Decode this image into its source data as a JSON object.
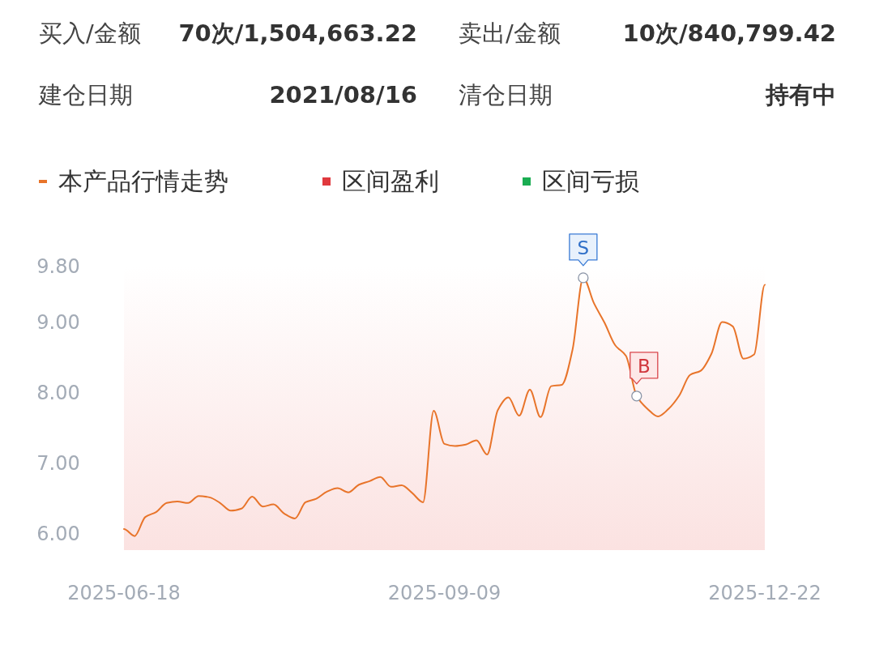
{
  "chart_data": {
    "type": "line",
    "annotations": [
      "买入/金额",
      "70次/1,504,663.22",
      "卖出/金额",
      "10次/840,799.42",
      "建仓日期",
      "2021/08/16",
      "清仓日期",
      "持有中",
      {
        "text": "S",
        "y": 9.64
      },
      {
        "text": "B",
        "y": 7.96
      }
    ],
    "categories": [
      "2025-06-18",
      null,
      null,
      null,
      null,
      null,
      null,
      null,
      null,
      null,
      null,
      null,
      null,
      null,
      null,
      null,
      null,
      null,
      null,
      null,
      null,
      null,
      null,
      null,
      null,
      null,
      null,
      null,
      null,
      null,
      "2025-09-09",
      null,
      null,
      null,
      null,
      null,
      null,
      null,
      null,
      null,
      null,
      null,
      null,
      null,
      null,
      null,
      null,
      null,
      null,
      null,
      null,
      null,
      null,
      null,
      null,
      null,
      null,
      null,
      null,
      null,
      "2025-12-22"
    ],
    "series": [
      {
        "name": "本产品行情走势",
        "color": "#e8742a",
        "values": [
          6.07,
          5.97,
          6.24,
          6.31,
          6.44,
          6.46,
          6.44,
          6.54,
          6.52,
          6.44,
          6.33,
          6.36,
          6.53,
          6.39,
          6.42,
          6.29,
          6.22,
          6.45,
          6.5,
          6.6,
          6.65,
          6.59,
          6.7,
          6.75,
          6.81,
          6.67,
          6.69,
          6.58,
          6.45,
          7.75,
          7.28,
          7.25,
          7.27,
          7.33,
          7.13,
          7.76,
          7.94,
          7.68,
          8.05,
          7.66,
          8.1,
          8.12,
          8.62,
          9.64,
          9.28,
          9.0,
          8.68,
          8.53,
          7.96,
          7.78,
          7.67,
          7.78,
          7.97,
          8.26,
          8.32,
          8.56,
          9.01,
          8.95,
          8.49,
          8.55,
          9.54
        ]
      },
      {
        "name": "区间盈利",
        "color": "#e0393e",
        "type": "area",
        "values": [
          null,
          null,
          null,
          null,
          null,
          null,
          null,
          null,
          null,
          null,
          null,
          null,
          null,
          null,
          null,
          null,
          null,
          null,
          null,
          null,
          null,
          null,
          null,
          null,
          null,
          null,
          null,
          null,
          null,
          null,
          null,
          null,
          null,
          null,
          null,
          null,
          null,
          null,
          null,
          null,
          null,
          null,
          null,
          null,
          null,
          null,
          null,
          null,
          null,
          null,
          null,
          null,
          null,
          null,
          null,
          null,
          null,
          null,
          null,
          null,
          null
        ]
      },
      {
        "name": "区间亏损",
        "color": "#1aad52",
        "type": "area",
        "values": [
          null,
          null,
          null,
          null,
          null,
          null,
          null,
          null,
          null,
          null,
          null,
          null,
          null,
          null,
          null,
          null,
          null,
          null,
          null,
          null,
          null,
          null,
          null,
          null,
          null,
          null,
          null,
          null,
          null,
          null,
          null,
          null,
          null,
          null,
          null,
          null,
          null,
          null,
          null,
          null,
          null,
          null,
          null,
          null,
          null,
          null,
          null,
          null,
          null,
          null,
          null,
          null,
          null,
          null,
          null,
          null,
          null,
          null,
          null,
          null,
          null
        ]
      }
    ],
    "ylim": [
      5.77,
      9.8
    ],
    "yticks": [
      {
        "value": 6,
        "label": "6.00"
      },
      {
        "value": 7,
        "label": "7.00"
      },
      {
        "value": 8,
        "label": "8.00"
      },
      {
        "value": 9,
        "label": "9.00"
      },
      {
        "value": 9.8,
        "label": "9.80"
      }
    ],
    "grid": false,
    "legend": "top left"
  }
}
